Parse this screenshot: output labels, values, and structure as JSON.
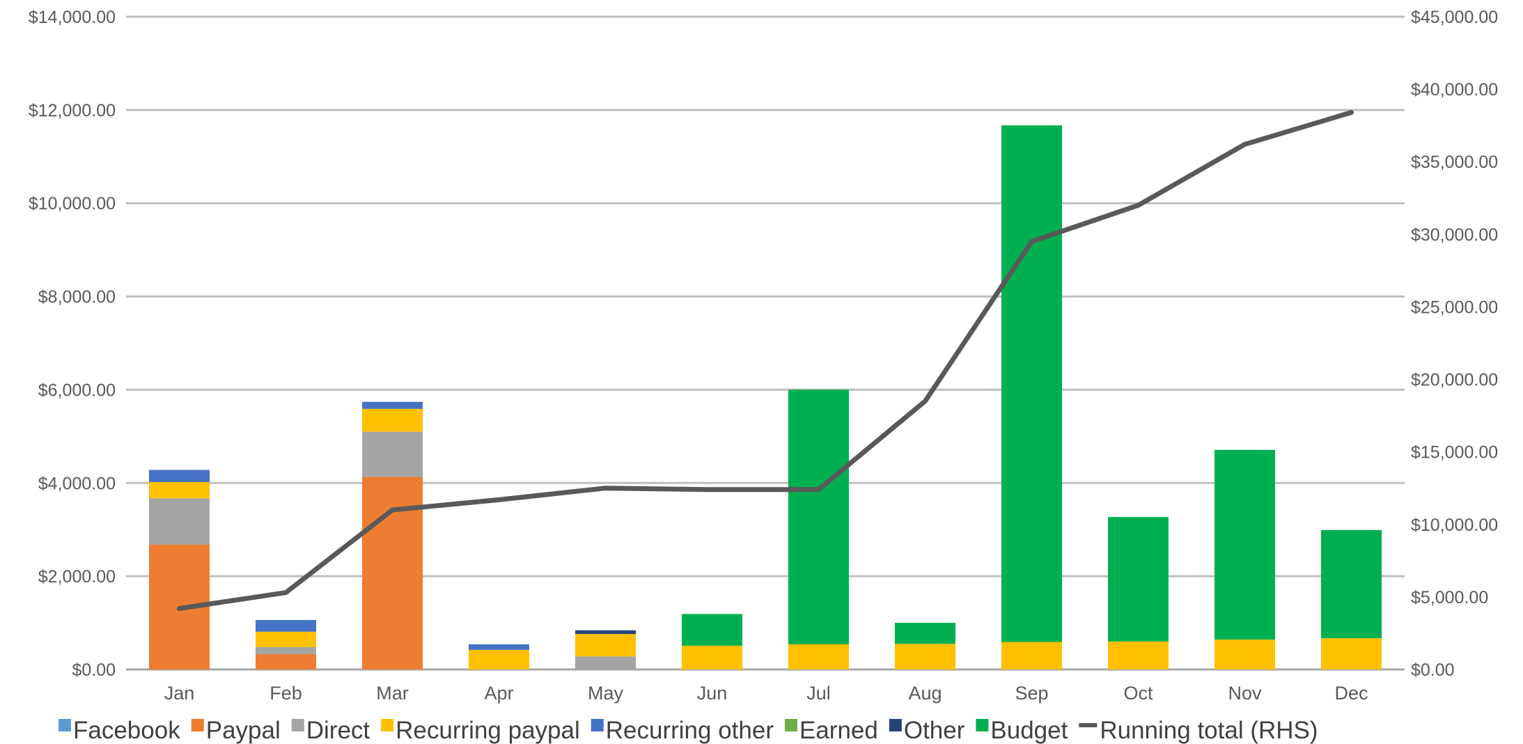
{
  "chart_data": {
    "type": "bar",
    "stacked": true,
    "categories": [
      "Jan",
      "Feb",
      "Mar",
      "Apr",
      "May",
      "Jun",
      "Jul",
      "Aug",
      "Sep",
      "Oct",
      "Nov",
      "Dec"
    ],
    "series": [
      {
        "name": "Facebook",
        "color": "#5B9BD5",
        "values": [
          0,
          0,
          0,
          0,
          0,
          0,
          0,
          0,
          0,
          0,
          0,
          0
        ]
      },
      {
        "name": "Paypal",
        "color": "#ED7D31",
        "values": [
          2680,
          330,
          4130,
          0,
          0,
          0,
          0,
          0,
          0,
          0,
          0,
          0
        ]
      },
      {
        "name": "Direct",
        "color": "#A5A5A5",
        "values": [
          990,
          150,
          970,
          0,
          280,
          0,
          0,
          0,
          0,
          0,
          0,
          0
        ]
      },
      {
        "name": "Recurring paypal",
        "color": "#FFC000",
        "values": [
          350,
          330,
          490,
          420,
          480,
          510,
          540,
          550,
          590,
          600,
          640,
          670
        ]
      },
      {
        "name": "Recurring other",
        "color": "#4472C4",
        "values": [
          260,
          250,
          150,
          120,
          0,
          0,
          0,
          0,
          0,
          0,
          0,
          0
        ]
      },
      {
        "name": "Earned",
        "color": "#70AD47",
        "values": [
          0,
          0,
          0,
          0,
          0,
          0,
          0,
          0,
          0,
          0,
          0,
          0
        ]
      },
      {
        "name": "Other",
        "color": "#264478",
        "values": [
          0,
          0,
          0,
          0,
          80,
          0,
          0,
          0,
          0,
          0,
          0,
          0
        ]
      },
      {
        "name": "Budget",
        "color": "#00B050",
        "values": [
          0,
          0,
          0,
          0,
          0,
          680,
          5460,
          450,
          11080,
          2670,
          4070,
          2320
        ]
      }
    ],
    "line": {
      "name": "Running total (RHS)",
      "color": "#595959",
      "axis": "right",
      "values": [
        4200,
        5300,
        11000,
        11700,
        12500,
        12400,
        12400,
        18500,
        29500,
        32000,
        36200,
        38400
      ]
    },
    "y_left": {
      "min": 0,
      "max": 14000,
      "step": 2000,
      "tick_labels": [
        "$0.00",
        "$2,000.00",
        "$4,000.00",
        "$6,000.00",
        "$8,000.00",
        "$10,000.00",
        "$12,000.00",
        "$14,000.00"
      ]
    },
    "y_right": {
      "min": 0,
      "max": 45000,
      "step": 5000,
      "tick_labels": [
        "$0.00",
        "$5,000.00",
        "$10,000.00",
        "$15,000.00",
        "$20,000.00",
        "$25,000.00",
        "$30,000.00",
        "$35,000.00",
        "$40,000.00",
        "$45,000.00"
      ]
    },
    "title": "",
    "xlabel": "",
    "ylabel": "",
    "grid": true,
    "legend_position": "bottom"
  }
}
